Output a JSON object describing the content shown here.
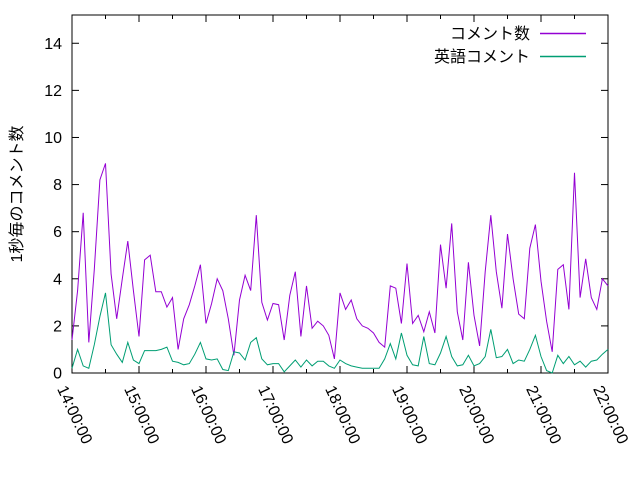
{
  "chart_data": {
    "type": "line",
    "title": "",
    "xlabel": "",
    "ylabel": "1秒毎のコメント数",
    "ylim": [
      0,
      15.2
    ],
    "ytick_values": [
      0,
      2,
      4,
      6,
      8,
      10,
      12,
      14
    ],
    "xtick_labels": [
      "14:00:00",
      "15:00:00",
      "16:00:00",
      "17:00:00",
      "18:00:00",
      "19:00:00",
      "20:00:00",
      "21:00:00",
      "22:00:00"
    ],
    "x_minor_tick_minutes": 30,
    "grid": false,
    "legend_position": "top-right-inside",
    "background_color": "#ffffff",
    "border_color": "#000000",
    "x": [
      "14:00:00",
      "14:05:00",
      "14:10:00",
      "14:15:00",
      "14:20:00",
      "14:25:00",
      "14:30:00",
      "14:35:00",
      "14:40:00",
      "14:45:00",
      "14:50:00",
      "14:55:00",
      "15:00:00",
      "15:05:00",
      "15:10:00",
      "15:15:00",
      "15:20:00",
      "15:25:00",
      "15:30:00",
      "15:35:00",
      "15:40:00",
      "15:45:00",
      "15:50:00",
      "15:55:00",
      "16:00:00",
      "16:05:00",
      "16:10:00",
      "16:15:00",
      "16:20:00",
      "16:25:00",
      "16:30:00",
      "16:35:00",
      "16:40:00",
      "16:45:00",
      "16:50:00",
      "16:55:00",
      "17:00:00",
      "17:05:00",
      "17:10:00",
      "17:15:00",
      "17:20:00",
      "17:25:00",
      "17:30:00",
      "17:35:00",
      "17:40:00",
      "17:45:00",
      "17:50:00",
      "17:55:00",
      "18:00:00",
      "18:05:00",
      "18:10:00",
      "18:15:00",
      "18:20:00",
      "18:25:00",
      "18:30:00",
      "18:35:00",
      "18:40:00",
      "18:45:00",
      "18:50:00",
      "18:55:00",
      "19:00:00",
      "19:05:00",
      "19:10:00",
      "19:15:00",
      "19:20:00",
      "19:25:00",
      "19:30:00",
      "19:35:00",
      "19:40:00",
      "19:45:00",
      "19:50:00",
      "19:55:00",
      "20:00:00",
      "20:05:00",
      "20:10:00",
      "20:15:00",
      "20:20:00",
      "20:25:00",
      "20:30:00",
      "20:35:00",
      "20:40:00",
      "20:45:00",
      "20:50:00",
      "20:55:00",
      "21:00:00",
      "21:05:00",
      "21:10:00",
      "21:15:00",
      "21:20:00",
      "21:25:00",
      "21:30:00",
      "21:35:00",
      "21:40:00",
      "21:45:00",
      "21:50:00",
      "21:55:00",
      "22:00:00"
    ],
    "series": [
      {
        "name": "コメント数",
        "color": "#9400D3",
        "values": [
          1.4,
          3.5,
          6.8,
          1.3,
          4.4,
          8.2,
          8.9,
          4.2,
          2.3,
          4.0,
          5.6,
          3.5,
          1.55,
          4.8,
          5.0,
          3.45,
          3.45,
          2.8,
          3.2,
          1.0,
          2.3,
          2.9,
          3.7,
          4.6,
          2.1,
          2.95,
          4.0,
          3.5,
          2.3,
          0.75,
          3.1,
          4.15,
          3.5,
          6.7,
          3.0,
          2.25,
          2.95,
          2.9,
          1.4,
          3.3,
          4.3,
          1.55,
          3.7,
          1.9,
          2.2,
          2.0,
          1.6,
          0.6,
          3.4,
          2.7,
          3.1,
          2.3,
          2.0,
          1.9,
          1.7,
          1.3,
          1.1,
          3.7,
          3.6,
          2.1,
          4.65,
          2.1,
          2.45,
          1.75,
          2.6,
          1.7,
          5.45,
          3.6,
          6.35,
          2.6,
          1.4,
          4.7,
          2.45,
          1.15,
          4.3,
          6.7,
          4.3,
          2.75,
          5.9,
          4.0,
          2.5,
          2.3,
          5.3,
          6.3,
          3.9,
          2.2,
          0.9,
          4.4,
          4.6,
          2.7,
          8.5,
          3.2,
          4.85,
          3.2,
          2.7,
          4.0,
          3.7
        ]
      },
      {
        "name": "英語コメント",
        "color": "#009E73",
        "values": [
          0.2,
          1.0,
          0.3,
          0.2,
          1.2,
          2.4,
          3.4,
          1.2,
          0.8,
          0.45,
          1.3,
          0.55,
          0.4,
          0.95,
          0.95,
          0.95,
          1.0,
          1.1,
          0.5,
          0.45,
          0.35,
          0.4,
          0.8,
          1.3,
          0.6,
          0.55,
          0.6,
          0.15,
          0.1,
          0.9,
          0.85,
          0.55,
          1.3,
          1.5,
          0.6,
          0.35,
          0.4,
          0.4,
          0.05,
          0.3,
          0.55,
          0.25,
          0.55,
          0.3,
          0.5,
          0.5,
          0.3,
          0.2,
          0.55,
          0.4,
          0.3,
          0.25,
          0.2,
          0.2,
          0.2,
          0.2,
          0.6,
          1.25,
          0.6,
          1.7,
          0.75,
          0.35,
          0.3,
          1.55,
          0.4,
          0.35,
          0.85,
          1.55,
          0.7,
          0.3,
          0.35,
          0.75,
          0.3,
          0.4,
          0.7,
          1.85,
          0.65,
          0.7,
          1.0,
          0.4,
          0.55,
          0.5,
          1.0,
          1.6,
          0.7,
          0.1,
          0.0,
          0.75,
          0.4,
          0.7,
          0.35,
          0.5,
          0.25,
          0.5,
          0.55,
          0.8,
          1.0
        ]
      }
    ]
  }
}
